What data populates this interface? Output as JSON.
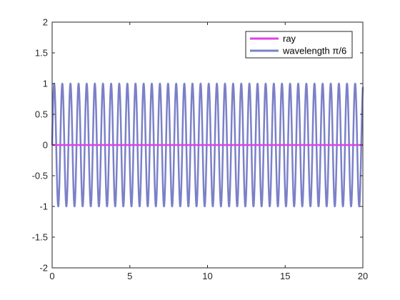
{
  "chart_data": {
    "type": "line",
    "xlim": [
      0,
      20
    ],
    "ylim": [
      -2,
      2
    ],
    "xticks": [
      0,
      5,
      10,
      15,
      20
    ],
    "yticks": [
      -2,
      -1.5,
      -1,
      -0.5,
      0,
      0.5,
      1,
      1.5,
      2
    ],
    "xtick_labels": [
      "0",
      "5",
      "10",
      "15",
      "20"
    ],
    "ytick_labels": [
      "-2",
      "-1.5",
      "-1",
      "-0.5",
      "0",
      "0.5",
      "1",
      "1.5",
      "2"
    ],
    "grid": false,
    "legend_position": "top-right",
    "series": [
      {
        "name": "ray",
        "color": "#e040e8",
        "function": "constant",
        "value": 0
      },
      {
        "name": "wavelength π/6",
        "color": "#7b80c8",
        "function": "sine",
        "amplitude": 1,
        "wavelength": 0.5235987756,
        "x_start": 0,
        "x_end": 20
      }
    ]
  }
}
